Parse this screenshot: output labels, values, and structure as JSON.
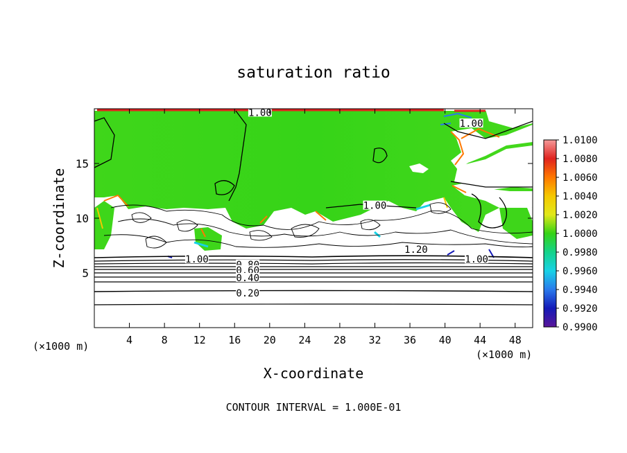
{
  "chart_data": {
    "type": "heatmap",
    "title": "saturation ratio",
    "xlabel": "X-coordinate",
    "ylabel": "Z-coordinate",
    "x_unit_label": "(×1000 m)",
    "x_unit_label_right": "(×1000 m)",
    "xlim": [
      0,
      50
    ],
    "ylim": [
      0,
      20
    ],
    "x_ticks": [
      4,
      8,
      12,
      16,
      20,
      24,
      28,
      32,
      36,
      40,
      44,
      48
    ],
    "y_ticks": [
      5,
      10,
      15
    ],
    "footer": "CONTOUR INTERVAL = 1.000E-01",
    "colorbar": {
      "labels": [
        "1.0100",
        "1.0080",
        "1.0060",
        "1.0040",
        "1.0020",
        "1.0000",
        "0.9980",
        "0.9960",
        "0.9940",
        "0.9920",
        "0.9900"
      ],
      "colors": [
        "#f59a9a",
        "#e0231f",
        "#ff7800",
        "#f5c800",
        "#e1e81a",
        "#35d315",
        "#14d38a",
        "#18d2e6",
        "#2a7aec",
        "#141ab8",
        "#5a169a"
      ]
    },
    "contour_interval": 0.1,
    "contour_labels": [
      {
        "text": "1.00",
        "x": 18.9,
        "z": 19.6
      },
      {
        "text": "1.00",
        "x": 43.0,
        "z": 18.6
      },
      {
        "text": "1.00",
        "x": 32.0,
        "z": 11.1
      },
      {
        "text": "1.20",
        "x": 36.7,
        "z": 7.1
      },
      {
        "text": "1.00",
        "x": 43.6,
        "z": 6.2
      },
      {
        "text": "1.00",
        "x": 11.7,
        "z": 6.2
      },
      {
        "text": "0.80",
        "x": 17.5,
        "z": 5.7
      },
      {
        "text": "0.60",
        "x": 17.5,
        "z": 5.2
      },
      {
        "text": "0.40",
        "x": 17.5,
        "z": 4.5
      },
      {
        "text": "0.20",
        "x": 17.5,
        "z": 3.1
      }
    ]
  }
}
